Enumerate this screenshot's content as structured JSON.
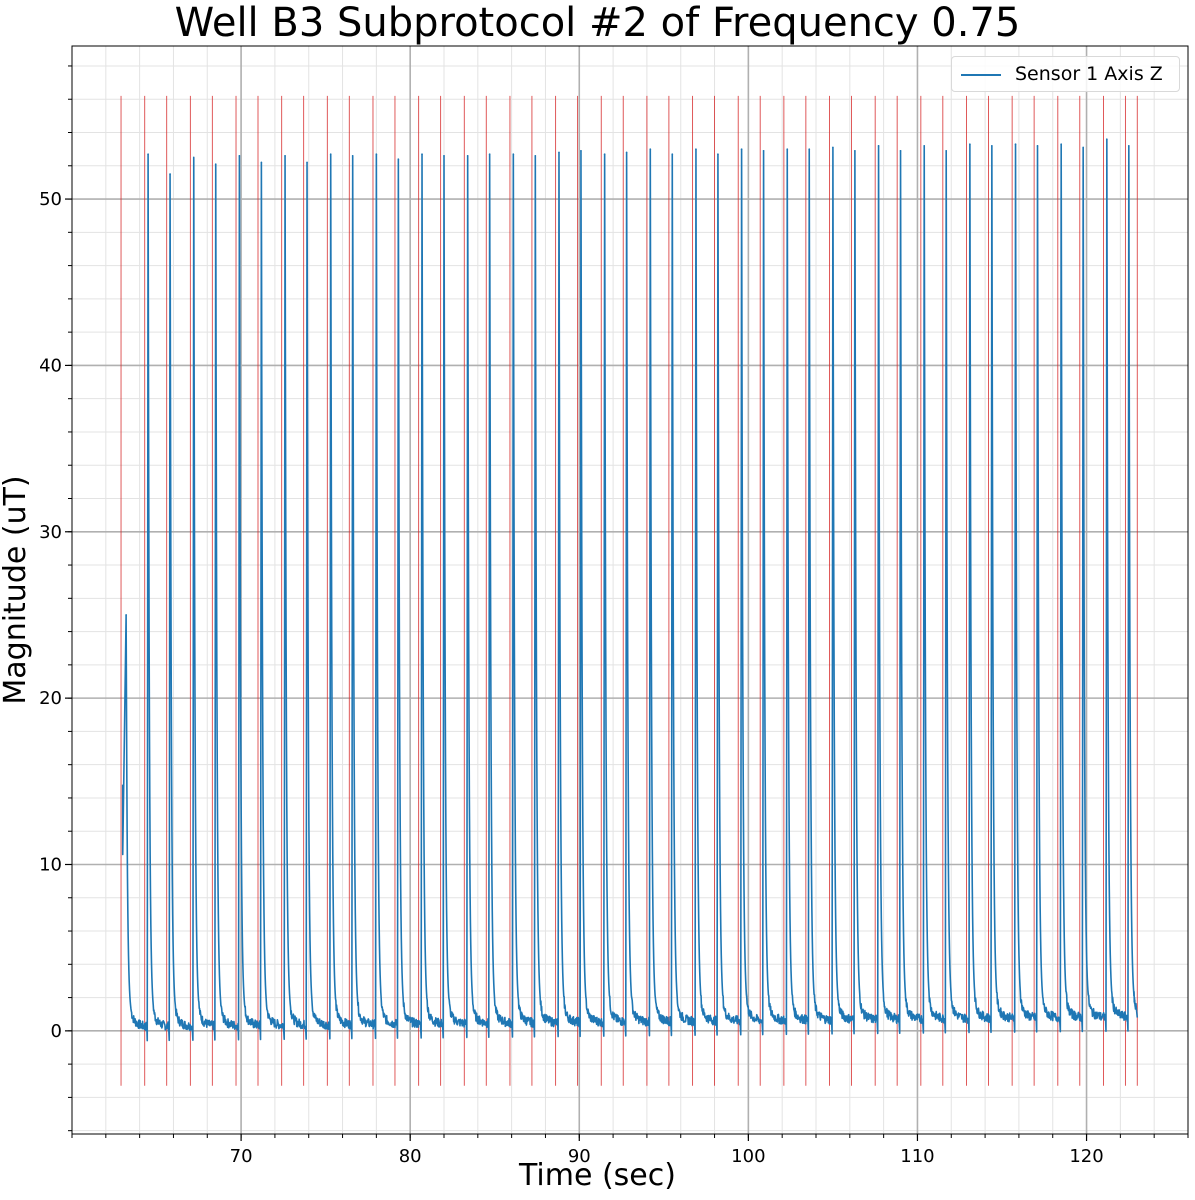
{
  "chart_data": {
    "type": "line",
    "title": "Well B3 Subprotocol #2 of Frequency 0.75",
    "xlabel": "Time (sec)",
    "ylabel": "Magnitude (uT)",
    "xlim": [
      60,
      126
    ],
    "ylim": [
      -6.2,
      59.2
    ],
    "x_ticks": [
      70,
      80,
      90,
      100,
      110,
      120
    ],
    "y_ticks": [
      0,
      10,
      20,
      30,
      40,
      50
    ],
    "grid": "major and minor",
    "legend_position": "top-right",
    "series": [
      {
        "name": "Sensor 1 Axis Z",
        "color": "#1f77b4",
        "start": [
          63.0,
          10.6
        ],
        "initial_peak": [
          63.2,
          25.0
        ],
        "peak_times": [
          64.5,
          65.8,
          67.2,
          68.5,
          69.9,
          71.2,
          72.6,
          73.9,
          75.3,
          76.6,
          78.0,
          79.3,
          80.7,
          82.0,
          83.4,
          84.7,
          86.1,
          87.4,
          88.8,
          90.1,
          91.5,
          92.8,
          94.2,
          95.5,
          96.9,
          98.2,
          99.6,
          100.9,
          102.3,
          103.6,
          105.0,
          106.3,
          107.7,
          109.0,
          110.4,
          111.7,
          113.1,
          114.4,
          115.8,
          117.1,
          118.5,
          119.8,
          121.2,
          122.5
        ],
        "peak_values": [
          52.7,
          51.5,
          52.5,
          52.1,
          52.6,
          52.2,
          52.6,
          52.2,
          52.7,
          52.6,
          52.7,
          52.4,
          52.7,
          52.6,
          52.6,
          52.7,
          52.7,
          52.6,
          52.8,
          52.9,
          52.7,
          52.8,
          53.0,
          52.7,
          53.0,
          52.7,
          53.0,
          52.9,
          53.0,
          53.0,
          53.1,
          52.9,
          53.2,
          52.9,
          53.2,
          52.9,
          53.3,
          53.2,
          53.3,
          53.2,
          53.3,
          53.1,
          53.6,
          53.2
        ],
        "baseline_start": 0.2,
        "baseline_end": 0.8,
        "end_time": 123.0
      }
    ],
    "stim_markers": {
      "color": "#d62728",
      "ymin": -3.3,
      "ymax": 56.2,
      "x": [
        62.9,
        64.3,
        65.6,
        67.0,
        68.3,
        69.7,
        71.0,
        72.4,
        73.7,
        75.1,
        76.4,
        77.8,
        79.1,
        80.5,
        81.8,
        83.2,
        84.5,
        85.9,
        87.2,
        88.6,
        89.9,
        91.3,
        92.6,
        94.0,
        95.3,
        96.7,
        98.0,
        99.4,
        100.7,
        102.1,
        103.4,
        104.8,
        106.1,
        107.5,
        108.8,
        110.2,
        111.5,
        112.9,
        114.2,
        115.6,
        116.9,
        118.3,
        119.6,
        121.0,
        122.3,
        123.0
      ]
    }
  }
}
